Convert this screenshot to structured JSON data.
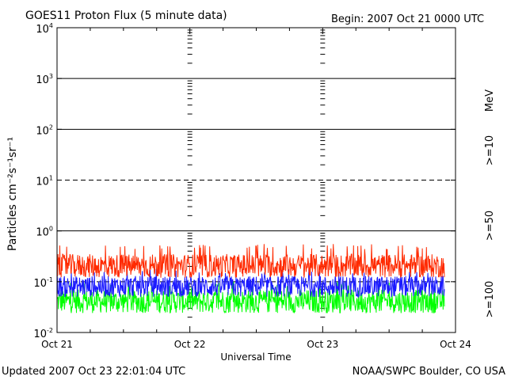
{
  "header": {
    "title": "GOES11 Proton Flux (5 minute data)",
    "begin": "Begin: 2007 Oct 21 0000 UTC"
  },
  "footer": {
    "updated": "Updated 2007 Oct 23 22:01:04 UTC",
    "source": "NOAA/SWPC Boulder, CO USA"
  },
  "chart_data": {
    "type": "line",
    "title": "GOES11 Proton Flux (5 minute data)",
    "xlabel": "Universal Time",
    "ylabel": "Particles cm⁻²s⁻¹sr⁻¹",
    "yscale": "log",
    "ylim": [
      0.01,
      10000
    ],
    "xlim": [
      "2007-10-21 00:00",
      "2007-10-24 00:00"
    ],
    "x_ticks": [
      "Oct 21",
      "Oct 22",
      "Oct 23",
      "Oct 24"
    ],
    "y_ticks": [
      {
        "base": "10",
        "exp": "4"
      },
      {
        "base": "10",
        "exp": "3"
      },
      {
        "base": "10",
        "exp": "2"
      },
      {
        "base": "10",
        "exp": "1"
      },
      {
        "base": "10",
        "exp": "0"
      },
      {
        "base": "10",
        "exp": "-1"
      },
      {
        "base": "10",
        "exp": "-2"
      }
    ],
    "units_label": "MeV",
    "series": [
      {
        "name": ">=10",
        "color": "#ff2a00",
        "typical_range": [
          0.12,
          0.35
        ],
        "peak": 0.55
      },
      {
        "name": ">=50",
        "color": "#1a1aff",
        "typical_range": [
          0.05,
          0.13
        ],
        "peak": 0.18
      },
      {
        "name": ">=100",
        "color": "#00ff00",
        "typical_range": [
          0.024,
          0.07
        ],
        "peak": 0.1
      }
    ],
    "data_end": "2007-10-23 22:00"
  }
}
